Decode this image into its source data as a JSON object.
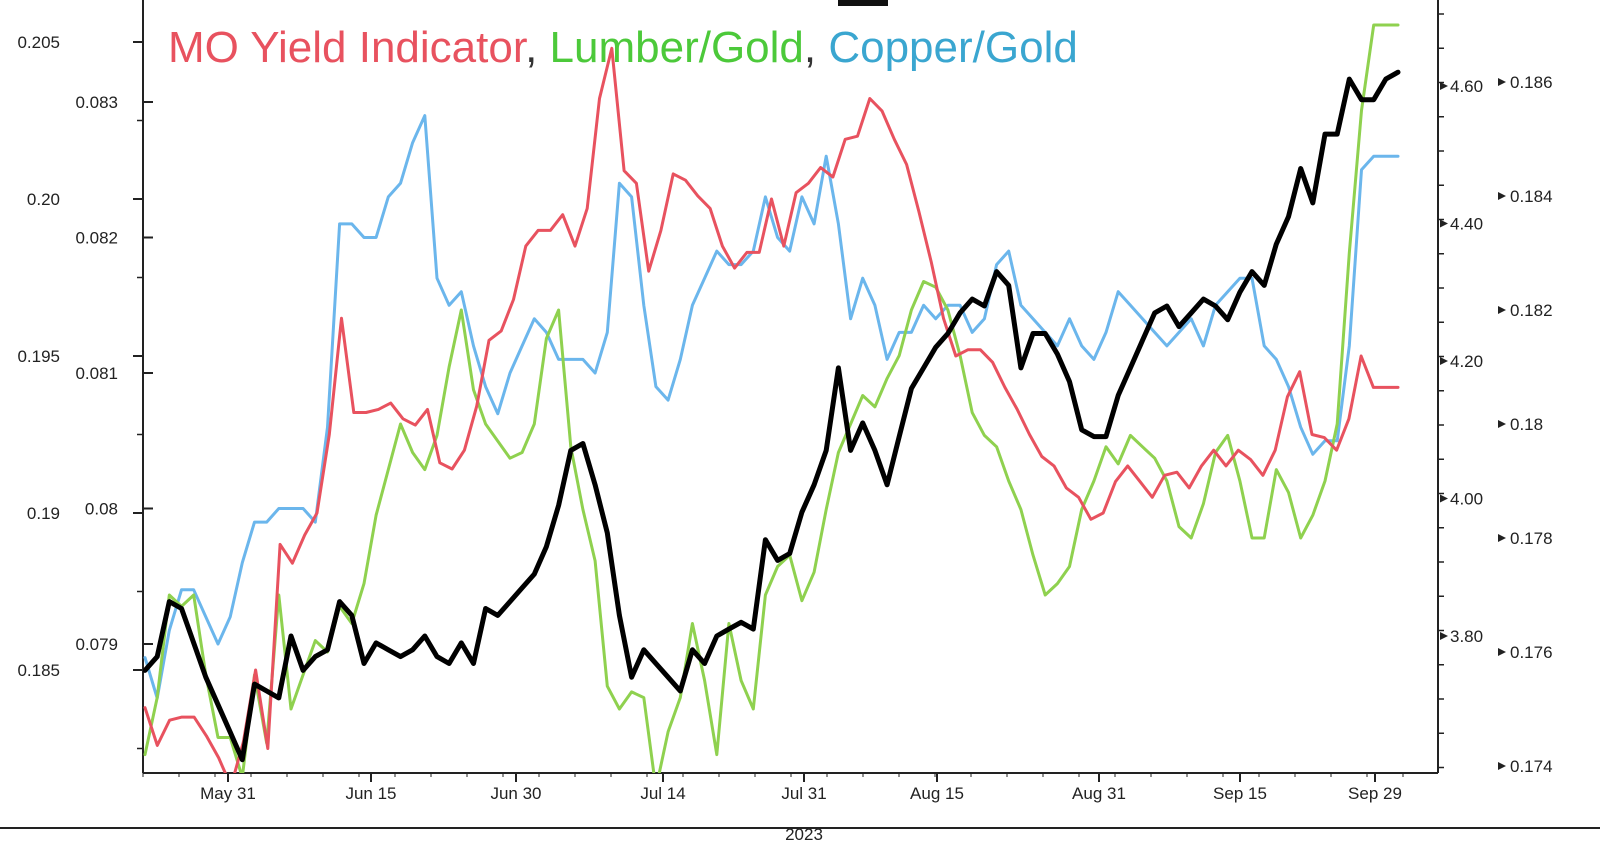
{
  "chart_data": {
    "type": "line",
    "title_parts": [
      {
        "text": "MO Yield Indicator",
        "color": "#e8525f"
      },
      {
        "text": ", ",
        "color": "#333333"
      },
      {
        "text": "Lumber/Gold",
        "color": "#4cc93a"
      },
      {
        "text": ", ",
        "color": "#333333"
      },
      {
        "text": "Copper/Gold",
        "color": "#3aa6d0"
      }
    ],
    "x_ticks": [
      "May 31",
      "Jun 15",
      "Jun 30",
      "Jul 14",
      "Jul 31",
      "Aug 15",
      "Aug 31",
      "Sep 15",
      "Sep 29"
    ],
    "x_axis_year": "2023",
    "axes": {
      "outer_left": {
        "ticks": [
          "0.205",
          "0.20",
          "0.195",
          "0.19",
          "0.185"
        ],
        "range": [
          0.1815,
          0.2065
        ]
      },
      "inner_left": {
        "ticks": [
          "0.083",
          "0.082",
          "0.081",
          "0.08",
          "0.079"
        ],
        "range": [
          0.07835,
          0.08345
        ]
      },
      "inner_right": {
        "ticks": [
          "4.60",
          "4.40",
          "4.20",
          "4.00",
          "3.80"
        ],
        "range": [
          3.6,
          4.7
        ]
      },
      "outer_right": {
        "ticks": [
          "0.186",
          "0.184",
          "0.182",
          "0.18",
          "0.178",
          "0.176",
          "0.174"
        ],
        "range": [
          0.174,
          0.1875
        ]
      }
    },
    "series": [
      {
        "key": "black",
        "color": "#000000",
        "width": 5,
        "axis": "inner_right",
        "values": [
          3.75,
          3.77,
          3.85,
          3.84,
          3.79,
          3.74,
          3.7,
          3.66,
          3.62,
          3.73,
          3.72,
          3.71,
          3.8,
          3.75,
          3.77,
          3.78,
          3.85,
          3.83,
          3.76,
          3.79,
          3.78,
          3.77,
          3.78,
          3.8,
          3.77,
          3.76,
          3.79,
          3.76,
          3.84,
          3.83,
          3.85,
          3.87,
          3.89,
          3.93,
          3.99,
          4.07,
          4.08,
          4.02,
          3.95,
          3.83,
          3.74,
          3.78,
          3.76,
          3.74,
          3.72,
          3.78,
          3.76,
          3.8,
          3.81,
          3.82,
          3.81,
          3.94,
          3.91,
          3.92,
          3.98,
          4.02,
          4.07,
          4.19,
          4.07,
          4.11,
          4.07,
          4.02,
          4.09,
          4.16,
          4.19,
          4.22,
          4.24,
          4.27,
          4.29,
          4.28,
          4.33,
          4.31,
          4.19,
          4.24,
          4.24,
          4.21,
          4.17,
          4.1,
          4.09,
          4.09,
          4.15,
          4.19,
          4.23,
          4.27,
          4.28,
          4.25,
          4.27,
          4.29,
          4.28,
          4.26,
          4.3,
          4.33,
          4.31,
          4.37,
          4.41,
          4.48,
          4.43,
          4.53,
          4.53,
          4.61,
          4.58,
          4.58,
          4.61,
          4.62
        ]
      },
      {
        "key": "red",
        "color": "#e8525f",
        "width": 3,
        "axis": "outer_left",
        "values": [
          0.1838,
          0.1826,
          0.1834,
          0.1835,
          0.1835,
          0.1829,
          0.1822,
          0.1813,
          0.1827,
          0.185,
          0.1825,
          0.189,
          0.1884,
          0.1893,
          0.19,
          0.1925,
          0.1962,
          0.1932,
          0.1932,
          0.1933,
          0.1935,
          0.193,
          0.1928,
          0.1933,
          0.1916,
          0.1914,
          0.192,
          0.1934,
          0.1955,
          0.1958,
          0.1968,
          0.1985,
          0.199,
          0.199,
          0.1995,
          0.1985,
          0.1997,
          0.2032,
          0.2048,
          0.2009,
          0.2005,
          0.1977,
          0.199,
          0.2008,
          0.2006,
          0.2001,
          0.1997,
          0.1985,
          0.1978,
          0.1983,
          0.1983,
          0.2,
          0.1985,
          0.2002,
          0.2005,
          0.201,
          0.2007,
          0.2019,
          0.202,
          0.2032,
          0.2028,
          0.2019,
          0.2011,
          0.1996,
          0.198,
          0.1962,
          0.195,
          0.1952,
          0.1952,
          0.1948,
          0.194,
          0.1933,
          0.1925,
          0.1918,
          0.1915,
          0.1908,
          0.1905,
          0.1898,
          0.19,
          0.191,
          0.1915,
          0.191,
          0.1905,
          0.1912,
          0.1913,
          0.1908,
          0.1915,
          0.192,
          0.1915,
          0.192,
          0.1917,
          0.1912,
          0.192,
          0.1937,
          0.1945,
          0.1925,
          0.1924,
          0.192,
          0.193,
          0.195,
          0.194,
          0.194,
          0.194
        ]
      },
      {
        "key": "green",
        "color": "#8fd14f",
        "width": 3,
        "axis": "outer_right",
        "values": [
          0.1742,
          0.1752,
          0.177,
          0.1768,
          0.177,
          0.1756,
          0.1745,
          0.1745,
          0.1738,
          0.1756,
          0.1744,
          0.177,
          0.175,
          0.1756,
          0.1762,
          0.176,
          0.1768,
          0.1765,
          0.1772,
          0.1784,
          0.1792,
          0.18,
          0.1795,
          0.1792,
          0.1798,
          0.181,
          0.182,
          0.1806,
          0.18,
          0.1797,
          0.1794,
          0.1795,
          0.18,
          0.1815,
          0.182,
          0.1796,
          0.1785,
          0.1776,
          0.1754,
          0.175,
          0.1753,
          0.1752,
          0.1736,
          0.1746,
          0.1752,
          0.1765,
          0.1755,
          0.1742,
          0.1765,
          0.1755,
          0.175,
          0.177,
          0.1775,
          0.1777,
          0.1769,
          0.1774,
          0.1785,
          0.1795,
          0.18,
          0.1805,
          0.1803,
          0.1808,
          0.1812,
          0.182,
          0.1825,
          0.1824,
          0.182,
          0.1812,
          0.1802,
          0.1798,
          0.1796,
          0.179,
          0.1785,
          0.1777,
          0.177,
          0.1772,
          0.1775,
          0.1785,
          0.179,
          0.1796,
          0.1793,
          0.1798,
          0.1796,
          0.1794,
          0.179,
          0.1782,
          0.178,
          0.1786,
          0.1795,
          0.1798,
          0.179,
          0.178,
          0.178,
          0.1792,
          0.1788,
          0.178,
          0.1784,
          0.179,
          0.18,
          0.183,
          0.1855,
          0.187,
          0.187,
          0.187
        ]
      },
      {
        "key": "blue",
        "color": "#6bb6ec",
        "width": 3,
        "axis": "inner_left",
        "values": [
          0.0789,
          0.0786,
          0.0791,
          0.0794,
          0.0794,
          0.0792,
          0.079,
          0.0792,
          0.0796,
          0.0799,
          0.0799,
          0.08,
          0.08,
          0.08,
          0.0799,
          0.0806,
          0.0821,
          0.0821,
          0.082,
          0.082,
          0.0823,
          0.0824,
          0.0827,
          0.0829,
          0.0817,
          0.0815,
          0.0816,
          0.0812,
          0.0809,
          0.0807,
          0.081,
          0.0812,
          0.0814,
          0.0813,
          0.0811,
          0.0811,
          0.0811,
          0.081,
          0.0813,
          0.0824,
          0.0823,
          0.0815,
          0.0809,
          0.0808,
          0.0811,
          0.0815,
          0.0817,
          0.0819,
          0.0818,
          0.0818,
          0.0819,
          0.0823,
          0.082,
          0.0819,
          0.0823,
          0.0821,
          0.0826,
          0.0821,
          0.0814,
          0.0817,
          0.0815,
          0.0811,
          0.0813,
          0.0813,
          0.0815,
          0.0814,
          0.0815,
          0.0815,
          0.0813,
          0.0814,
          0.0818,
          0.0819,
          0.0815,
          0.0814,
          0.0813,
          0.0812,
          0.0814,
          0.0812,
          0.0811,
          0.0813,
          0.0816,
          0.0815,
          0.0814,
          0.0813,
          0.0812,
          0.0813,
          0.0814,
          0.0812,
          0.0815,
          0.0816,
          0.0817,
          0.0817,
          0.0812,
          0.0811,
          0.0809,
          0.0806,
          0.0804,
          0.0805,
          0.0805,
          0.0812,
          0.0825,
          0.0826,
          0.0826,
          0.0826
        ]
      }
    ]
  }
}
